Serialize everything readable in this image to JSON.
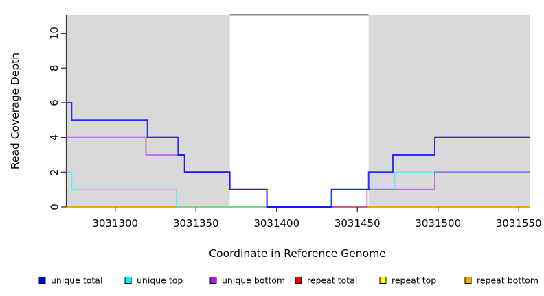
{
  "chart_data": {
    "type": "line",
    "step": "post",
    "title": "",
    "xlabel": "Coordinate in Reference Genome",
    "ylabel": "Read Coverage Depth",
    "xlim": [
      3031269.7,
      3031556.7
    ],
    "ylim": [
      0,
      11.05
    ],
    "x_ticks": [
      3031300,
      3031350,
      3031400,
      3031450,
      3031500,
      3031550
    ],
    "y_ticks": [
      0,
      2,
      4,
      6,
      8,
      10
    ],
    "background_color": "#ffffff",
    "shaded_region_color": "#d9d9d9",
    "shaded_regions": [
      {
        "name": "left-mappable-region",
        "x0": 3031269.7,
        "x1": 3031371
      },
      {
        "name": "right-mappable-region",
        "x0": 3031457,
        "x1": 3031556.7
      }
    ],
    "gap_region": {
      "name": "repeat-gap-region",
      "x0": 3031371,
      "x1": 3031457,
      "fill": "#ffffff",
      "top_border_color": "#8c8c8c"
    },
    "axis_color": "#3a3a3a",
    "series": [
      {
        "name": "repeat total",
        "color": "#dd0000",
        "opacity": 1,
        "line_width": 2,
        "points": [
          [
            3031269.7,
            0
          ],
          [
            3031556.7,
            0
          ]
        ]
      },
      {
        "name": "repeat top",
        "color": "#ffff00",
        "opacity": 1,
        "line_width": 2,
        "points": [
          [
            3031269.7,
            0
          ],
          [
            3031556.7,
            0
          ]
        ]
      },
      {
        "name": "repeat bottom",
        "color": "#ffa500",
        "opacity": 1,
        "line_width": 2,
        "points": [
          [
            3031269.7,
            0
          ],
          [
            3031556.7,
            0
          ]
        ]
      },
      {
        "name": "unique top",
        "color": "#00ffff",
        "opacity": 0.55,
        "line_width": 2,
        "points": [
          [
            3031269.7,
            2
          ],
          [
            3031273,
            1
          ],
          [
            3031338,
            0
          ],
          [
            3031434,
            1
          ],
          [
            3031473,
            2
          ],
          [
            3031556.7,
            2
          ]
        ]
      },
      {
        "name": "unique bottom",
        "color": "#a020f0",
        "opacity": 0.55,
        "line_width": 2,
        "points": [
          [
            3031269.7,
            4
          ],
          [
            3031319,
            3
          ],
          [
            3031343,
            2
          ],
          [
            3031371,
            1
          ],
          [
            3031394,
            0
          ],
          [
            3031456,
            1
          ],
          [
            3031498,
            2
          ],
          [
            3031556.7,
            2
          ]
        ]
      },
      {
        "name": "unique total",
        "color": "#0000ff",
        "opacity": 0.8,
        "line_width": 2,
        "points": [
          [
            3031269.7,
            6
          ],
          [
            3031273,
            5
          ],
          [
            3031320,
            4
          ],
          [
            3031339,
            3
          ],
          [
            3031343,
            2
          ],
          [
            3031371,
            1
          ],
          [
            3031394,
            0
          ],
          [
            3031434,
            1
          ],
          [
            3031457,
            2
          ],
          [
            3031472,
            3
          ],
          [
            3031498,
            4
          ],
          [
            3031556.7,
            4
          ]
        ]
      }
    ],
    "legend_position": "bottom",
    "legend": [
      {
        "label": "unique total",
        "color": "#0000f0"
      },
      {
        "label": "unique top",
        "color": "#00f0ff"
      },
      {
        "label": "unique bottom",
        "color": "#a020f0"
      },
      {
        "label": "repeat total",
        "color": "#e60000"
      },
      {
        "label": "repeat top",
        "color": "#ffff00"
      },
      {
        "label": "repeat bottom",
        "color": "#ffa500"
      }
    ]
  }
}
